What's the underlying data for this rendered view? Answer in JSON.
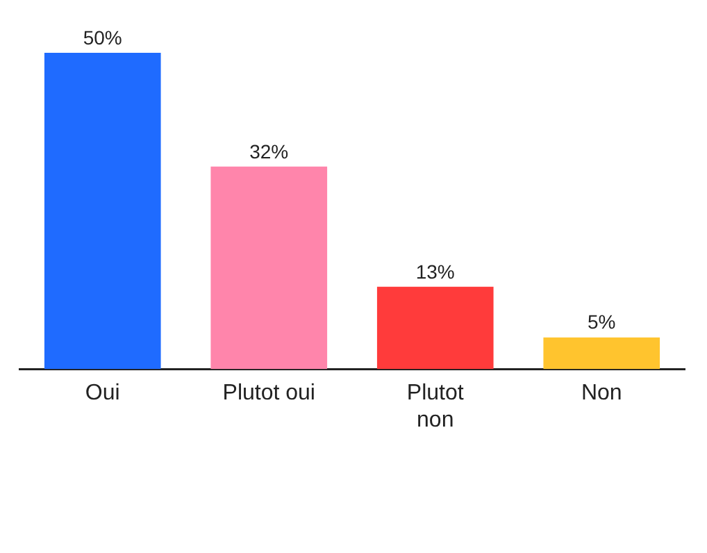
{
  "chart_data": {
    "type": "bar",
    "categories": [
      "Oui",
      "Plutot oui",
      "Plutot\nnon",
      "Non"
    ],
    "values": [
      50,
      32,
      13,
      5
    ],
    "colors": [
      "#1f6bff",
      "#ff85ab",
      "#ff3b3b",
      "#ffc42e"
    ],
    "value_labels": [
      "50%",
      "32%",
      "13%",
      "5%"
    ],
    "legend": false
  }
}
